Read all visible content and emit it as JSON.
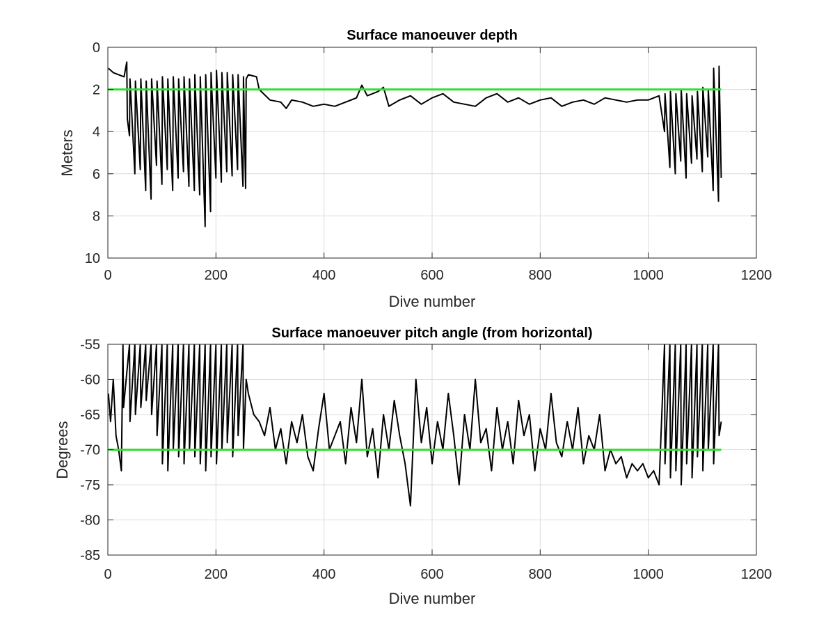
{
  "colors": {
    "data_line": "#000000",
    "reference_line": "#33dd33",
    "grid": "#dcdcdc",
    "axes": "#262626"
  },
  "chart_data": [
    {
      "type": "line",
      "title": "Surface manoeuver depth",
      "xlabel": "Dive number",
      "ylabel": "Meters",
      "xlim": [
        0,
        1200
      ],
      "ylim": [
        0,
        10
      ],
      "y_reversed": true,
      "grid": true,
      "xticks": [
        "0",
        "200",
        "400",
        "600",
        "800",
        "1000",
        "1200"
      ],
      "yticks": [
        "0",
        "2",
        "4",
        "6",
        "8",
        "10"
      ],
      "reference_line": {
        "y": 2,
        "x": [
          0,
          1135
        ]
      },
      "series": [
        {
          "x": [
            1,
            10,
            20,
            30,
            35,
            36,
            40,
            41,
            50,
            51,
            60,
            61,
            70,
            71,
            80,
            81,
            90,
            91,
            100,
            101,
            110,
            111,
            120,
            121,
            130,
            131,
            140,
            141,
            150,
            151,
            160,
            161,
            170,
            171,
            180,
            181,
            190,
            191,
            200,
            201,
            210,
            211,
            220,
            221,
            230,
            231,
            240,
            241,
            250,
            251,
            255,
            256,
            260,
            275,
            280,
            300,
            320,
            330,
            340,
            360,
            380,
            400,
            420,
            440,
            460,
            470,
            480,
            500,
            510,
            520,
            540,
            560,
            580,
            600,
            620,
            640,
            660,
            680,
            700,
            720,
            740,
            760,
            780,
            800,
            820,
            840,
            860,
            880,
            900,
            920,
            940,
            960,
            980,
            1000,
            1020,
            1030,
            1031,
            1040,
            1041,
            1050,
            1051,
            1060,
            1061,
            1070,
            1071,
            1080,
            1081,
            1090,
            1091,
            1100,
            1101,
            1110,
            1111,
            1120,
            1121,
            1130,
            1131,
            1135
          ],
          "y": [
            1.0,
            1.2,
            1.3,
            1.4,
            0.7,
            3.4,
            4.2,
            1.5,
            6.0,
            1.6,
            5.8,
            1.5,
            6.8,
            1.6,
            7.2,
            1.5,
            5.6,
            1.6,
            6.5,
            1.4,
            5.8,
            1.5,
            6.8,
            1.4,
            6.2,
            1.5,
            5.9,
            1.4,
            6.6,
            1.5,
            6.8,
            1.3,
            7.0,
            1.4,
            8.5,
            1.3,
            7.8,
            1.2,
            6.2,
            1.1,
            6.4,
            1.2,
            5.9,
            1.2,
            6.1,
            1.3,
            5.8,
            1.3,
            6.6,
            1.4,
            6.7,
            1.5,
            1.3,
            1.4,
            2.0,
            2.5,
            2.6,
            2.9,
            2.5,
            2.6,
            2.8,
            2.7,
            2.8,
            2.6,
            2.4,
            1.8,
            2.3,
            2.1,
            1.9,
            2.8,
            2.5,
            2.3,
            2.7,
            2.4,
            2.2,
            2.6,
            2.7,
            2.8,
            2.4,
            2.2,
            2.6,
            2.4,
            2.7,
            2.5,
            2.4,
            2.8,
            2.6,
            2.5,
            2.7,
            2.4,
            2.5,
            2.6,
            2.5,
            2.5,
            2.3,
            4.0,
            2.2,
            5.7,
            2.1,
            6.0,
            2.2,
            5.4,
            2.0,
            6.2,
            2.2,
            5.5,
            2.3,
            5.3,
            2.1,
            5.9,
            1.9,
            5.2,
            2.0,
            6.8,
            1.0,
            7.3,
            0.9,
            6.2
          ]
        }
      ]
    },
    {
      "type": "line",
      "title": "Surface manoeuver pitch angle (from horizontal)",
      "xlabel": "Dive number",
      "ylabel": "Degrees",
      "xlim": [
        0,
        1200
      ],
      "ylim": [
        -85,
        -55
      ],
      "grid": true,
      "xticks": [
        "0",
        "200",
        "400",
        "600",
        "800",
        "1000",
        "1200"
      ],
      "yticks": [
        "-55",
        "-60",
        "-65",
        "-70",
        "-75",
        "-80",
        "-85"
      ],
      "reference_line": {
        "y": -70,
        "x": [
          0,
          1135
        ]
      },
      "series": [
        {
          "x": [
            1,
            5,
            10,
            15,
            20,
            25,
            28,
            29,
            40,
            41,
            50,
            51,
            60,
            61,
            70,
            71,
            80,
            81,
            90,
            91,
            100,
            101,
            110,
            111,
            120,
            121,
            130,
            131,
            140,
            141,
            150,
            151,
            160,
            161,
            170,
            171,
            180,
            181,
            190,
            191,
            200,
            201,
            210,
            211,
            220,
            221,
            230,
            231,
            240,
            241,
            250,
            251,
            256,
            260,
            270,
            280,
            290,
            300,
            310,
            320,
            330,
            340,
            350,
            360,
            370,
            380,
            390,
            400,
            410,
            420,
            430,
            440,
            450,
            460,
            470,
            480,
            490,
            500,
            510,
            520,
            530,
            540,
            550,
            560,
            570,
            580,
            590,
            600,
            610,
            620,
            630,
            640,
            650,
            660,
            670,
            680,
            690,
            700,
            710,
            720,
            730,
            740,
            750,
            760,
            770,
            780,
            790,
            800,
            810,
            820,
            830,
            840,
            850,
            860,
            870,
            880,
            890,
            900,
            910,
            920,
            930,
            940,
            950,
            960,
            970,
            980,
            990,
            1000,
            1010,
            1020,
            1030,
            1031,
            1040,
            1041,
            1050,
            1051,
            1060,
            1061,
            1070,
            1071,
            1080,
            1081,
            1090,
            1091,
            1100,
            1101,
            1110,
            1111,
            1120,
            1121,
            1130,
            1131,
            1135
          ],
          "y": [
            -62,
            -66,
            -60,
            -68,
            -70,
            -73,
            -55,
            -64,
            -55,
            -66,
            -55,
            -65,
            -55,
            -64,
            -55,
            -63,
            -55,
            -65,
            -55,
            -68,
            -55,
            -72,
            -55,
            -73,
            -55,
            -70,
            -55,
            -71,
            -55,
            -72,
            -55,
            -70,
            -55,
            -71,
            -55,
            -72,
            -55,
            -73,
            -55,
            -71,
            -55,
            -72,
            -55,
            -70,
            -55,
            -69,
            -55,
            -71,
            -55,
            -68,
            -55,
            -70,
            -60,
            -62,
            -65,
            -66,
            -68,
            -64,
            -70,
            -67,
            -72,
            -66,
            -69,
            -65,
            -71,
            -73,
            -67,
            -62,
            -70,
            -68,
            -66,
            -72,
            -64,
            -69,
            -60,
            -71,
            -67,
            -74,
            -65,
            -70,
            -63,
            -68,
            -72,
            -78,
            -60,
            -69,
            -64,
            -72,
            -66,
            -70,
            -62,
            -68,
            -75,
            -65,
            -70,
            -60,
            -69,
            -67,
            -73,
            -64,
            -70,
            -66,
            -72,
            -63,
            -68,
            -65,
            -73,
            -67,
            -70,
            -62,
            -69,
            -71,
            -66,
            -70,
            -64,
            -72,
            -68,
            -70,
            -65,
            -73,
            -70,
            -72,
            -71,
            -74,
            -72,
            -73,
            -72,
            -74,
            -73,
            -75,
            -55,
            -72,
            -55,
            -74,
            -55,
            -73,
            -55,
            -75,
            -55,
            -72,
            -55,
            -74,
            -55,
            -71,
            -55,
            -73,
            -55,
            -70,
            -55,
            -72,
            -55,
            -68,
            -66
          ]
        }
      ]
    }
  ]
}
